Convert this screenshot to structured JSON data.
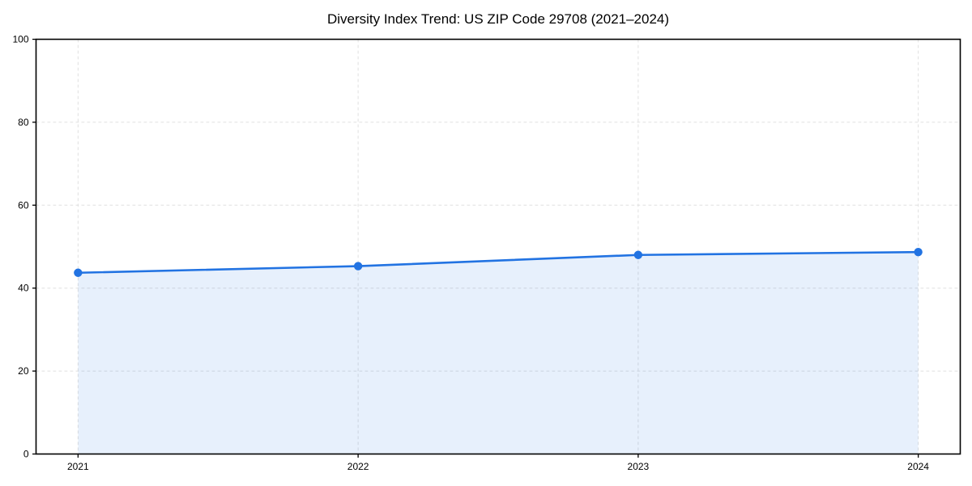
{
  "chart_data": {
    "type": "line",
    "title": "Diversity Index Trend: US ZIP Code 29708 (2021–2024)",
    "x": [
      "2021",
      "2022",
      "2023",
      "2024"
    ],
    "series": [
      {
        "name": "Diversity Index",
        "values": [
          43.7,
          45.3,
          48.0,
          48.7
        ]
      }
    ],
    "xlabel": "",
    "ylabel": "",
    "ylim": [
      0,
      100
    ],
    "yticks": [
      0,
      20,
      40,
      60,
      80,
      100
    ],
    "grid": true,
    "grid_style": "dashed",
    "legend_position": "none",
    "area_fill": true,
    "markers": true,
    "colors": {
      "line": "#2273e2",
      "marker": "#2273e2",
      "fill": "#2273e2",
      "fill_opacity": 0.11,
      "grid": "#e0e0e0",
      "axis": "#000000",
      "text": "#000000",
      "background": "#ffffff"
    }
  }
}
